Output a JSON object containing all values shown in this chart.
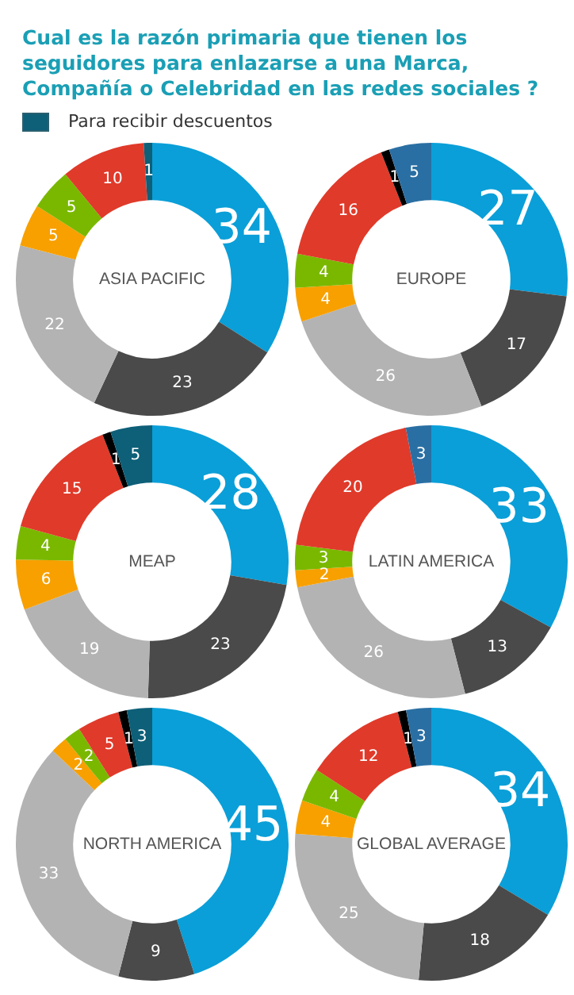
{
  "chart_data": [
    {
      "type": "donut",
      "title": "Cual es la razón primaria que tienen los seguidores para enlazarse a una Marca, Compañía o Celebridad en las redes sociales ?",
      "subtitle": "ASIA PACIFIC",
      "legend": "top left",
      "categories": [
        null,
        null,
        null,
        null,
        null,
        null,
        null,
        "Para recibir descuentos"
      ],
      "values": [
        34,
        23,
        22,
        5,
        5,
        10,
        null,
        1
      ],
      "colors": [
        "#0a9fd8",
        "#4a4a4a",
        "#b3b3b3",
        "#f7a000",
        "#7ab800",
        "#e03a2a",
        "#000000",
        "#0e5f78"
      ],
      "data_labels": true
    },
    {
      "type": "donut",
      "title": "EUROPE",
      "categories": [
        null,
        null,
        null,
        null,
        null,
        null,
        null,
        null
      ],
      "values": [
        27,
        17,
        26,
        4,
        4,
        16,
        1,
        5
      ],
      "colors": [
        "#0a9fd8",
        "#4a4a4a",
        "#b3b3b3",
        "#f7a000",
        "#7ab800",
        "#e03a2a",
        "#000000",
        "#2a6fa3"
      ],
      "data_labels": true
    },
    {
      "type": "donut",
      "title": "MEAP",
      "categories": [
        null,
        null,
        null,
        null,
        null,
        null,
        null,
        null
      ],
      "values": [
        28,
        23,
        19,
        6,
        4,
        15,
        1,
        5
      ],
      "colors": [
        "#0a9fd8",
        "#4a4a4a",
        "#b3b3b3",
        "#f7a000",
        "#7ab800",
        "#e03a2a",
        "#000000",
        "#0e5f78"
      ],
      "data_labels": true
    },
    {
      "type": "donut",
      "title": "LATIN AMERICA",
      "categories": [
        null,
        null,
        null,
        null,
        null,
        null,
        null,
        null
      ],
      "values": [
        33,
        13,
        26,
        2,
        3,
        20,
        null,
        3
      ],
      "colors": [
        "#0a9fd8",
        "#4a4a4a",
        "#b3b3b3",
        "#f7a000",
        "#7ab800",
        "#e03a2a",
        "#000000",
        "#2a6fa3"
      ],
      "data_labels": true
    },
    {
      "type": "donut",
      "title": "NORTH AMERICA",
      "categories": [
        null,
        null,
        null,
        null,
        null,
        null,
        null,
        null
      ],
      "values": [
        45,
        9,
        33,
        2,
        2,
        5,
        1,
        3
      ],
      "colors": [
        "#0a9fd8",
        "#4a4a4a",
        "#b3b3b3",
        "#f7a000",
        "#7ab800",
        "#e03a2a",
        "#000000",
        "#0e5f78"
      ],
      "data_labels": true
    },
    {
      "type": "donut",
      "title": "GLOBAL AVERAGE",
      "categories": [
        null,
        null,
        null,
        null,
        null,
        null,
        null,
        null
      ],
      "values": [
        34,
        18,
        25,
        4,
        4,
        12,
        1,
        3
      ],
      "colors": [
        "#0a9fd8",
        "#4a4a4a",
        "#b3b3b3",
        "#f7a000",
        "#7ab800",
        "#e03a2a",
        "#000000",
        "#2a6fa3"
      ],
      "data_labels": true
    }
  ]
}
